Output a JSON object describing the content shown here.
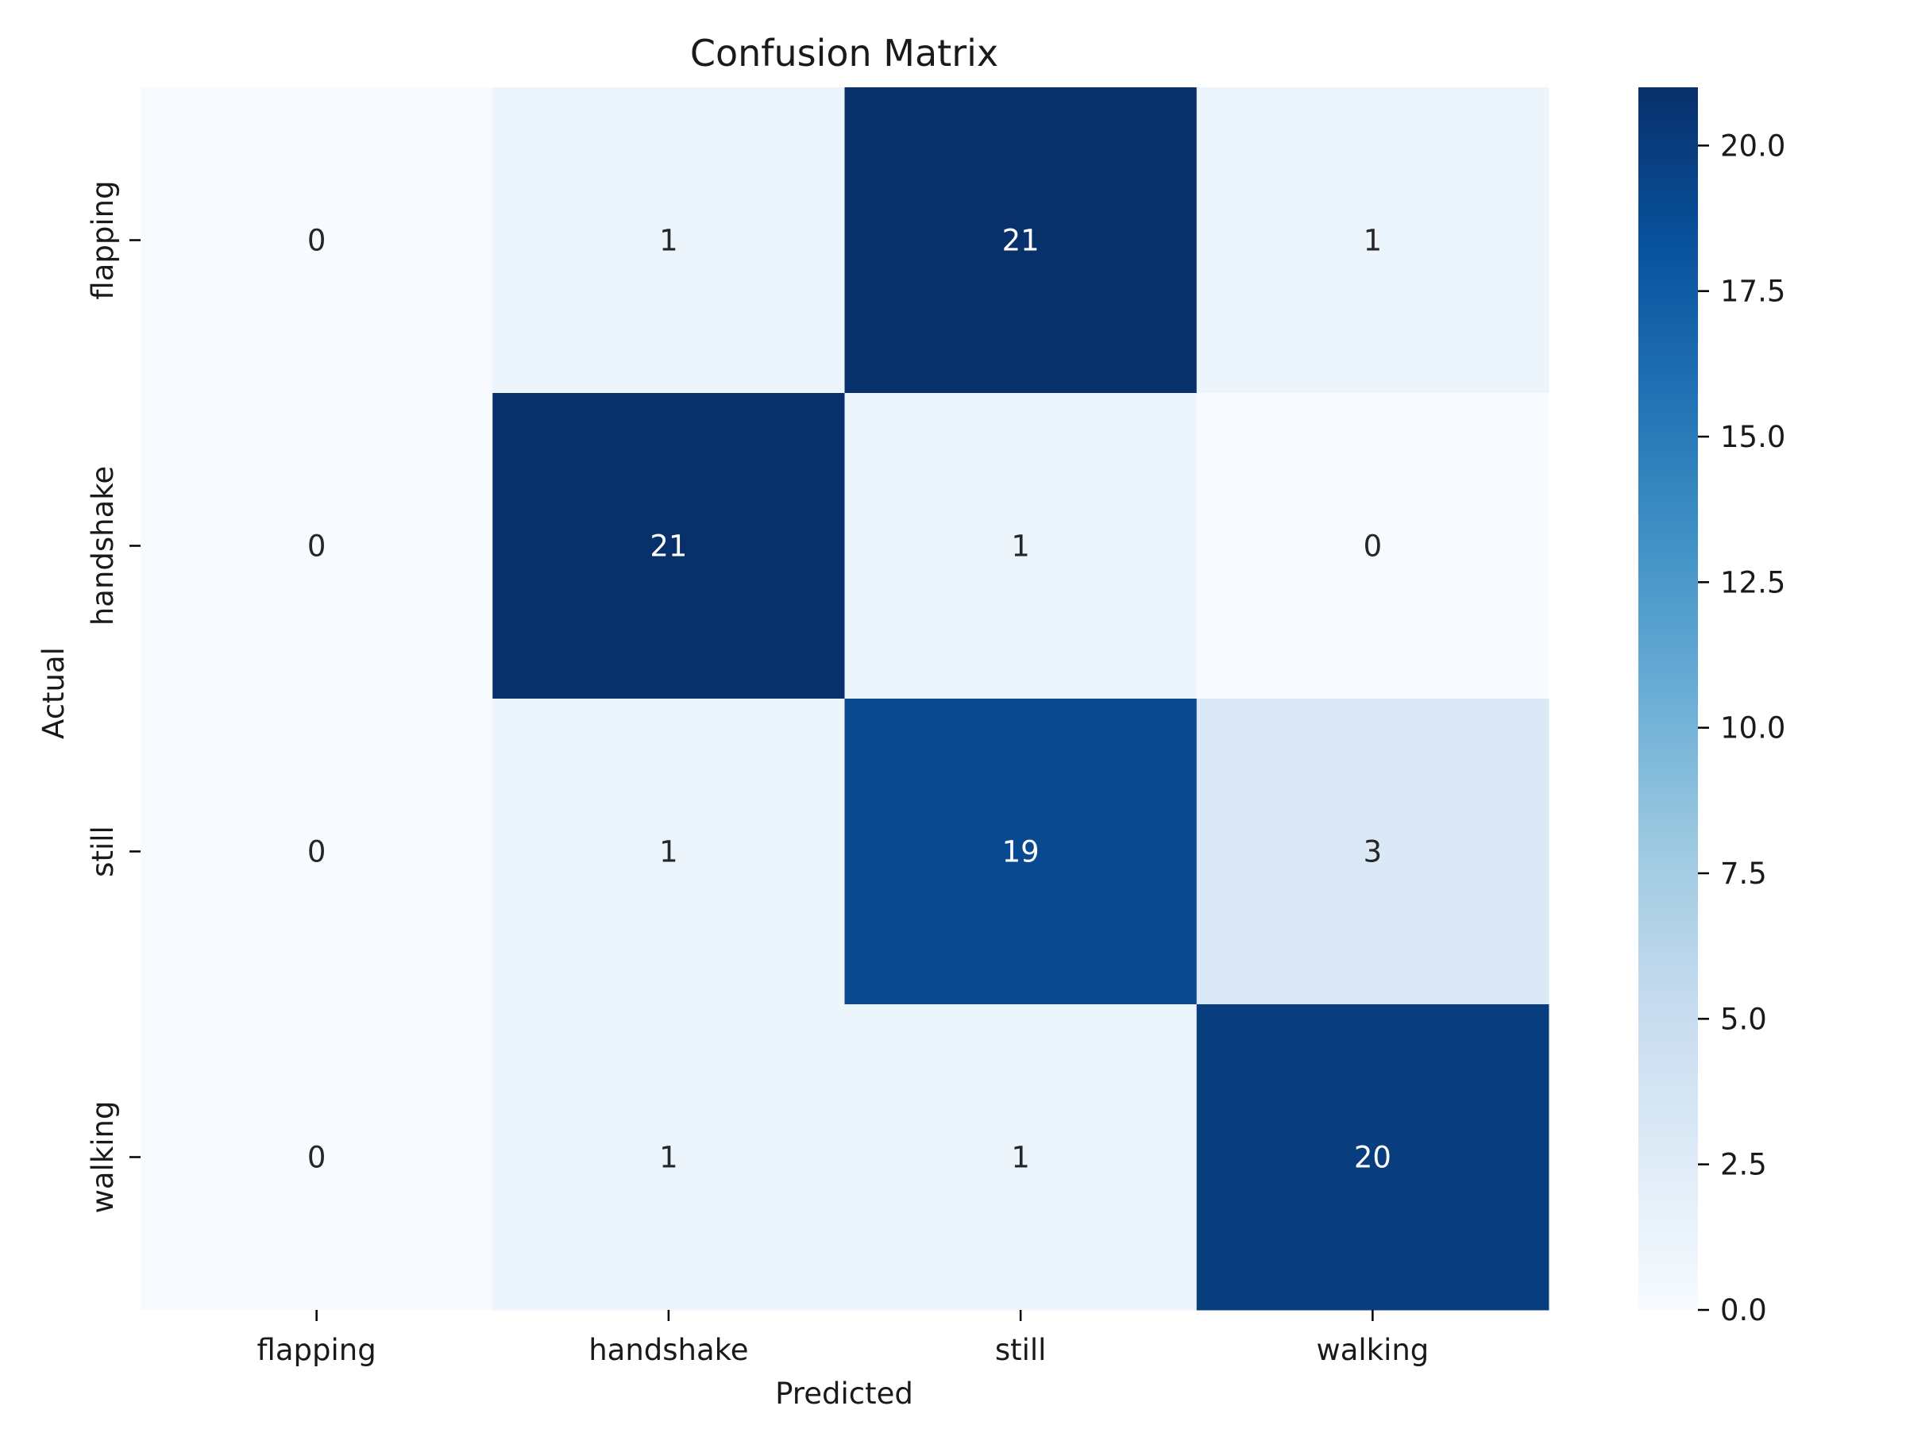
{
  "chart_data": {
    "type": "heatmap",
    "title": "Confusion Matrix",
    "xlabel": "Predicted",
    "ylabel": "Actual",
    "x_categories": [
      "flapping",
      "handshake",
      "still",
      "walking"
    ],
    "y_categories": [
      "flapping",
      "handshake",
      "still",
      "walking"
    ],
    "values": [
      [
        0,
        1,
        21,
        1
      ],
      [
        0,
        21,
        1,
        0
      ],
      [
        0,
        1,
        19,
        3
      ],
      [
        0,
        1,
        1,
        20
      ]
    ],
    "colorscale": "Blues",
    "colorbar": {
      "range": [
        0,
        21
      ],
      "ticks": [
        0.0,
        2.5,
        5.0,
        7.5,
        10.0,
        12.5,
        15.0,
        17.5,
        20.0
      ],
      "tick_labels": [
        "0.0",
        "2.5",
        "5.0",
        "7.5",
        "10.0",
        "12.5",
        "15.0",
        "17.5",
        "20.0"
      ]
    },
    "grid": false
  }
}
